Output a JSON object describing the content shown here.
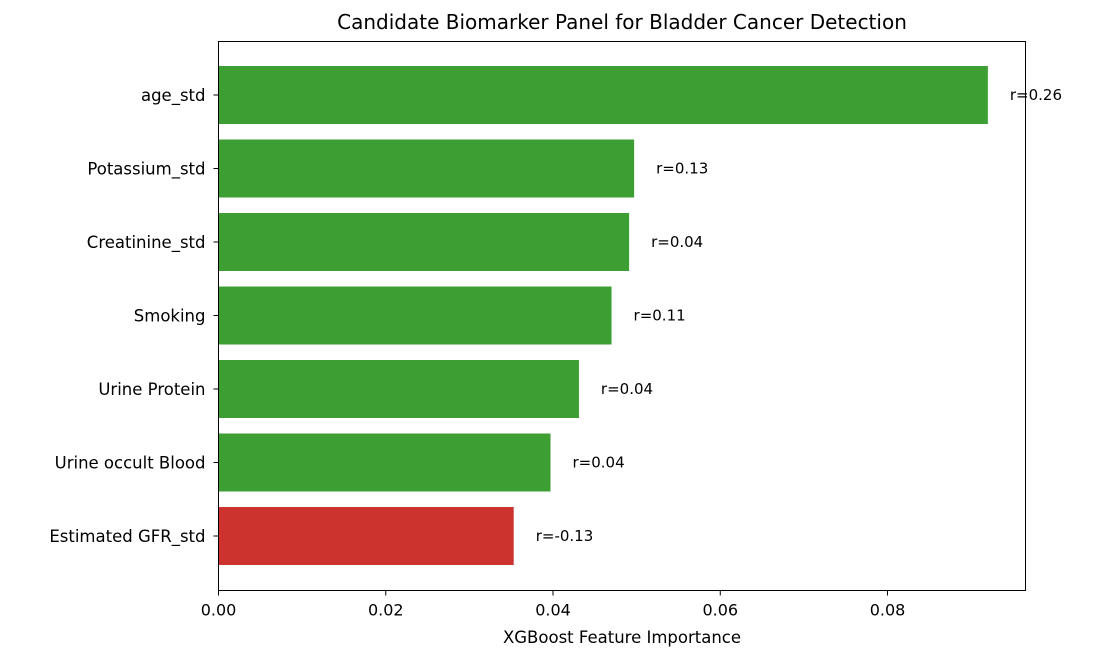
{
  "chart_data": {
    "type": "bar",
    "orientation": "horizontal",
    "title": "Candidate Biomarker Panel for Bladder Cancer Detection",
    "xlabel": "XGBoost Feature Importance",
    "ylabel": "",
    "xlim": [
      0,
      0.0965
    ],
    "xticks": [
      0.0,
      0.02,
      0.04,
      0.06,
      0.08
    ],
    "xtick_labels": [
      "0.00",
      "0.02",
      "0.04",
      "0.06",
      "0.08"
    ],
    "grid": false,
    "categories": [
      "age_std",
      "Potassium_std",
      "Creatinine_std",
      "Smoking",
      "Urine Protein",
      "Urine occult Blood",
      "Estimated GFR_std"
    ],
    "values": [
      0.092,
      0.0497,
      0.0491,
      0.047,
      0.0431,
      0.0397,
      0.0353
    ],
    "labels": [
      "r=0.26",
      "r=0.13",
      "r=0.04",
      "r=0.11",
      "r=0.04",
      "r=0.04",
      "r=-0.13"
    ],
    "colors": [
      "#3d9e33",
      "#3d9e33",
      "#3d9e33",
      "#3d9e33",
      "#3d9e33",
      "#3d9e33",
      "#cc332e"
    ]
  }
}
